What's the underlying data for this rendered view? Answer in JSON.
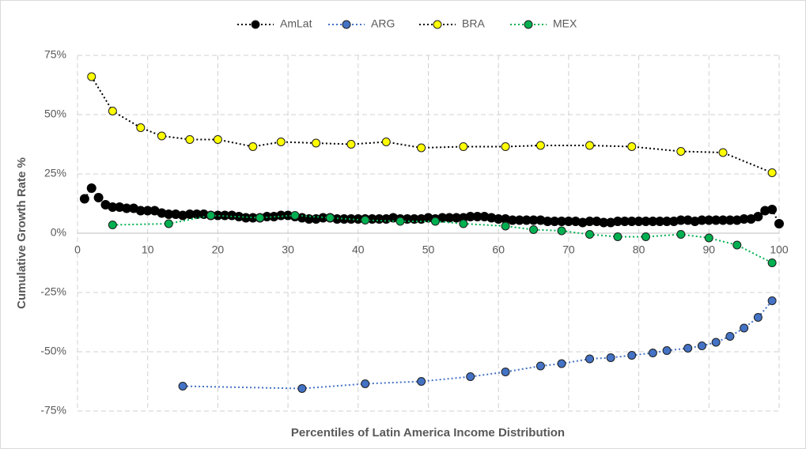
{
  "chart_data": {
    "type": "line",
    "xlabel": "Percentiles of Latin America Income Distribution",
    "ylabel": "Cumulative Growth Rate %",
    "xlim": [
      0,
      100
    ],
    "xticks": [
      0,
      10,
      20,
      30,
      40,
      50,
      60,
      70,
      80,
      90,
      100
    ],
    "ylim": [
      -75,
      75
    ],
    "yticks": [
      {
        "value": -75,
        "label": "-75%"
      },
      {
        "value": -50,
        "label": "-50%"
      },
      {
        "value": -25,
        "label": "-25%"
      },
      {
        "value": 0,
        "label": "0%"
      },
      {
        "value": 25,
        "label": "25%"
      },
      {
        "value": 50,
        "label": "50%"
      },
      {
        "value": 75,
        "label": "75%"
      }
    ],
    "grid": true,
    "legend": "top",
    "series": [
      {
        "name": "AmLat",
        "color": "#000000",
        "x": [
          1,
          2,
          3,
          4,
          5,
          6,
          7,
          8,
          9,
          10,
          11,
          12,
          13,
          14,
          15,
          16,
          17,
          18,
          19,
          20,
          21,
          22,
          23,
          24,
          25,
          26,
          27,
          28,
          29,
          30,
          31,
          32,
          33,
          34,
          35,
          36,
          37,
          38,
          39,
          40,
          41,
          42,
          43,
          44,
          45,
          46,
          47,
          48,
          49,
          50,
          51,
          52,
          53,
          54,
          55,
          56,
          57,
          58,
          59,
          60,
          61,
          62,
          63,
          64,
          65,
          66,
          67,
          68,
          69,
          70,
          71,
          72,
          73,
          74,
          75,
          76,
          77,
          78,
          79,
          80,
          81,
          82,
          83,
          84,
          85,
          86,
          87,
          88,
          89,
          90,
          91,
          92,
          93,
          94,
          95,
          96,
          97,
          98,
          99,
          100
        ],
        "values": [
          14.5,
          19,
          15,
          12,
          11,
          11,
          10.5,
          10.5,
          9.5,
          9.5,
          9.5,
          8.5,
          8,
          8,
          7.5,
          8,
          8,
          8,
          7.5,
          7.5,
          7.5,
          7.5,
          7,
          6.5,
          6.5,
          6.5,
          7,
          7,
          7.5,
          7.5,
          7,
          6.5,
          6,
          6,
          6.5,
          6.5,
          6,
          6,
          6,
          6,
          6,
          6,
          6,
          6,
          6.5,
          6,
          6,
          6,
          6,
          6.5,
          6,
          6.5,
          6.5,
          6.5,
          6.5,
          7,
          7,
          7,
          6.5,
          6,
          6,
          5.5,
          5.5,
          5.5,
          5.5,
          5.5,
          5,
          5,
          5,
          5,
          5,
          4.5,
          5,
          5,
          4.5,
          4.5,
          5,
          5,
          5,
          5,
          5,
          5,
          5,
          5,
          5,
          5.5,
          5.5,
          5,
          5.5,
          5.5,
          5.5,
          5.5,
          5.5,
          5.5,
          6,
          6,
          7,
          9.5,
          10,
          4
        ]
      },
      {
        "name": "ARG",
        "color": "#4472c4",
        "x": [
          15,
          32,
          41,
          49,
          56,
          61,
          66,
          69,
          73,
          76,
          79,
          82,
          84,
          87,
          89,
          91,
          93,
          95,
          97,
          99
        ],
        "values": [
          -64.5,
          -65.5,
          -63.5,
          -62.5,
          -60.5,
          -58.5,
          -56,
          -55,
          -53,
          -52.5,
          -51.5,
          -50.5,
          -49.5,
          -48.5,
          -47.5,
          -46,
          -43.5,
          -40,
          -35.5,
          -28.5
        ]
      },
      {
        "name": "BRA",
        "color": "#ffff00",
        "x": [
          2,
          5,
          9,
          12,
          16,
          20,
          25,
          29,
          34,
          39,
          44,
          49,
          55,
          61,
          66,
          73,
          79,
          86,
          92,
          99
        ],
        "values": [
          66,
          51.5,
          44.5,
          41,
          39.5,
          39.5,
          36.5,
          38.5,
          38,
          37.5,
          38.5,
          36,
          36.5,
          36.5,
          37,
          37,
          36.5,
          34.5,
          34,
          25.5
        ]
      },
      {
        "name": "MEX",
        "color": "#00b050",
        "x": [
          5,
          13,
          19,
          26,
          31,
          36,
          41,
          46,
          51,
          55,
          61,
          65,
          69,
          73,
          77,
          81,
          86,
          90,
          94,
          99
        ],
        "values": [
          3.5,
          4,
          7.5,
          6.5,
          7.5,
          6.5,
          5.5,
          5,
          5,
          4,
          3,
          1.5,
          1,
          -0.5,
          -1.5,
          -1.5,
          -0.5,
          -2,
          -5,
          -12.5
        ]
      }
    ]
  }
}
